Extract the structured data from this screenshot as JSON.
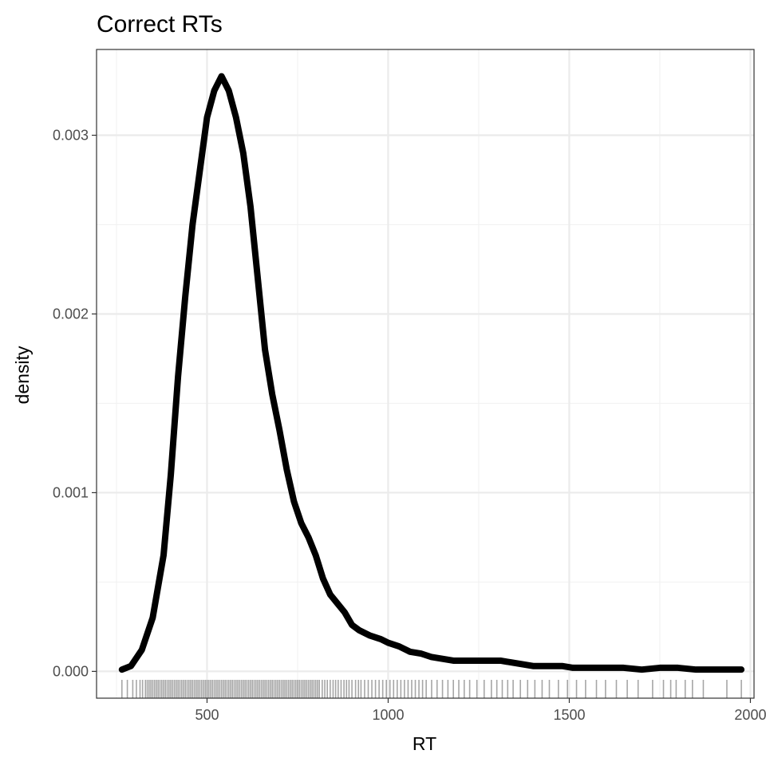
{
  "chart_data": {
    "type": "line",
    "title": "Correct RTs",
    "xlabel": "RT",
    "ylabel": "density",
    "xlim": [
      195,
      2010
    ],
    "ylim": [
      -0.00015,
      0.00348
    ],
    "x_ticks": [
      500,
      1000,
      1500,
      2000
    ],
    "x_tick_labels": [
      "500",
      "1000",
      "1500",
      "2000"
    ],
    "y_ticks": [
      0.0,
      0.001,
      0.002,
      0.003
    ],
    "y_tick_labels": [
      "0.000",
      "0.001",
      "0.002",
      "0.003"
    ],
    "grid": true,
    "legend": "none",
    "colors": {
      "line": "#000000",
      "grid": "#ebebeb",
      "panel_border": "#333333",
      "rug": "#000000"
    },
    "series": [
      {
        "x": [
          265,
          290,
          320,
          350,
          380,
          400,
          420,
          440,
          460,
          480,
          500,
          520,
          540,
          560,
          580,
          600,
          620,
          640,
          660,
          680,
          700,
          720,
          740,
          760,
          780,
          800,
          820,
          840,
          860,
          880,
          900,
          920,
          950,
          980,
          1000,
          1030,
          1060,
          1090,
          1120,
          1150,
          1180,
          1210,
          1250,
          1280,
          1310,
          1340,
          1370,
          1400,
          1450,
          1480,
          1510,
          1550,
          1600,
          1650,
          1700,
          1750,
          1800,
          1850,
          1900,
          1950,
          1975
        ],
        "values": [
          1e-05,
          3e-05,
          0.00012,
          0.0003,
          0.00065,
          0.0011,
          0.00165,
          0.0021,
          0.0025,
          0.0028,
          0.0031,
          0.00325,
          0.00333,
          0.00325,
          0.0031,
          0.0029,
          0.0026,
          0.0022,
          0.0018,
          0.00155,
          0.00135,
          0.00113,
          0.00095,
          0.00083,
          0.00075,
          0.00065,
          0.00052,
          0.00043,
          0.00038,
          0.00033,
          0.00026,
          0.00023,
          0.0002,
          0.00018,
          0.00016,
          0.00014,
          0.00011,
          0.0001,
          8e-05,
          7e-05,
          6e-05,
          6e-05,
          6e-05,
          6e-05,
          6e-05,
          5e-05,
          4e-05,
          3e-05,
          3e-05,
          3e-05,
          2e-05,
          2e-05,
          2e-05,
          2e-05,
          1e-05,
          2e-05,
          2e-05,
          1e-05,
          1e-05,
          1e-05,
          1e-05
        ]
      }
    ],
    "rug": [
      265,
      280,
      295,
      305,
      315,
      322,
      330,
      335,
      340,
      345,
      350,
      355,
      360,
      365,
      370,
      375,
      380,
      385,
      390,
      395,
      400,
      405,
      410,
      415,
      420,
      425,
      430,
      435,
      440,
      445,
      450,
      455,
      460,
      465,
      470,
      475,
      480,
      485,
      490,
      495,
      500,
      505,
      510,
      515,
      520,
      525,
      530,
      535,
      540,
      545,
      550,
      555,
      560,
      565,
      570,
      575,
      580,
      585,
      590,
      595,
      600,
      605,
      610,
      615,
      620,
      625,
      630,
      635,
      640,
      645,
      650,
      655,
      660,
      665,
      670,
      675,
      680,
      685,
      690,
      695,
      700,
      705,
      710,
      715,
      720,
      725,
      730,
      735,
      740,
      745,
      750,
      755,
      760,
      765,
      770,
      775,
      780,
      785,
      790,
      795,
      800,
      805,
      810,
      818,
      825,
      832,
      840,
      848,
      855,
      862,
      870,
      878,
      885,
      892,
      900,
      910,
      918,
      925,
      935,
      945,
      955,
      965,
      975,
      985,
      995,
      1005,
      1015,
      1025,
      1035,
      1045,
      1055,
      1065,
      1075,
      1085,
      1095,
      1105,
      1120,
      1135,
      1150,
      1165,
      1180,
      1195,
      1210,
      1225,
      1245,
      1265,
      1285,
      1300,
      1315,
      1330,
      1345,
      1365,
      1385,
      1405,
      1425,
      1445,
      1470,
      1495,
      1520,
      1545,
      1575,
      1600,
      1630,
      1660,
      1690,
      1730,
      1760,
      1780,
      1795,
      1820,
      1840,
      1870,
      1935,
      1975
    ]
  }
}
